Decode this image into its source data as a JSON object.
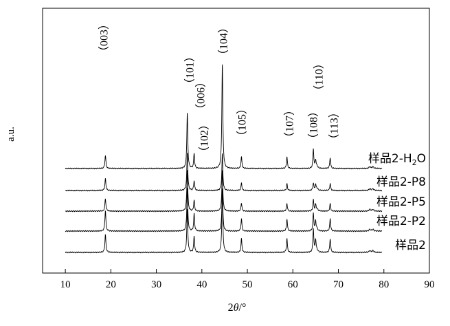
{
  "chart_data": {
    "type": "line",
    "ylabel": "a.u.",
    "xlabel_prefix": "2",
    "xlabel_theta": "θ",
    "xlabel_suffix": "/°",
    "xlim": [
      5,
      90
    ],
    "xticks": [
      10,
      20,
      30,
      40,
      50,
      60,
      70,
      80,
      90
    ],
    "y_ticks_shown": false,
    "peaks": [
      {
        "label": "（003）",
        "x": 18.8
      },
      {
        "label": "（101）",
        "x": 36.8
      },
      {
        "label": "（006）",
        "x": 38.3
      },
      {
        "label": "（102）",
        "x": 38.9
      },
      {
        "label": "（104）",
        "x": 44.5
      },
      {
        "label": "（105）",
        "x": 48.7
      },
      {
        "label": "（107）",
        "x": 58.7
      },
      {
        "label": "（108）",
        "x": 64.5
      },
      {
        "label": "（110）",
        "x": 65.1
      },
      {
        "label": "（113）",
        "x": 68.2
      }
    ],
    "series": [
      {
        "name": "样品2-H₂O",
        "name_main": "样品2-H",
        "name_sub": "2",
        "name_tail": "O",
        "peak_heights": [
          19,
          80,
          22,
          152,
          17,
          17,
          28,
          12,
          16
        ]
      },
      {
        "name": "样品2-P8",
        "name_main": "样品2-P8",
        "name_sub": "",
        "name_tail": "",
        "peak_heights": [
          17,
          55,
          14,
          53,
          11,
          10,
          11,
          8,
          10
        ]
      },
      {
        "name": "样品2-P5",
        "name_main": "样品2-P5",
        "name_sub": "",
        "name_tail": "",
        "peak_heights": [
          18,
          60,
          16,
          60,
          12,
          11,
          16,
          9,
          11
        ]
      },
      {
        "name": "样品2-P2",
        "name_main": "样品2-P2",
        "name_sub": "",
        "name_tail": "",
        "peak_heights": [
          30,
          63,
          25,
          62,
          18,
          18,
          26,
          14,
          18
        ]
      },
      {
        "name": "样品2",
        "name_main": "样品2",
        "name_sub": "",
        "name_tail": "",
        "peak_heights": [
          26,
          62,
          24,
          90,
          20,
          20,
          34,
          18,
          20
        ]
      }
    ]
  }
}
